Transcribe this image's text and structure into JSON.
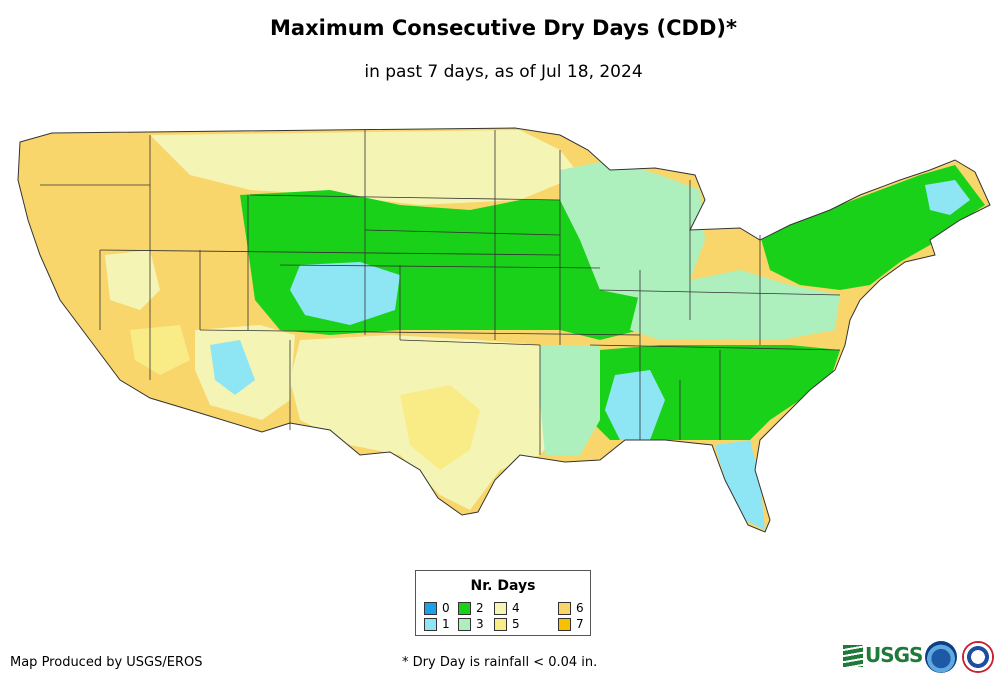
{
  "title": "Maximum Consecutive Dry Days (CDD)*",
  "subtitle": "in past 7 days, as of Jul 18, 2024",
  "legend": {
    "title": "Nr. Days",
    "items": [
      {
        "label": "0",
        "color": "#1ea1e6"
      },
      {
        "label": "1",
        "color": "#8ee6f5"
      },
      {
        "label": "2",
        "color": "#19d119"
      },
      {
        "label": "3",
        "color": "#aef0bd"
      },
      {
        "label": "4",
        "color": "#f4f4b4"
      },
      {
        "label": "5",
        "color": "#f9ec86"
      },
      {
        "label": "6",
        "color": "#f8d66b"
      },
      {
        "label": "7",
        "color": "#f7c100"
      }
    ]
  },
  "footer": {
    "producer": "Map Produced by USGS/EROS",
    "note": "* Dry Day is rainfall < 0.04 in."
  },
  "logos": {
    "usgs": "USGS",
    "noaa": "noaa-logo",
    "nws": "nws-logo"
  }
}
